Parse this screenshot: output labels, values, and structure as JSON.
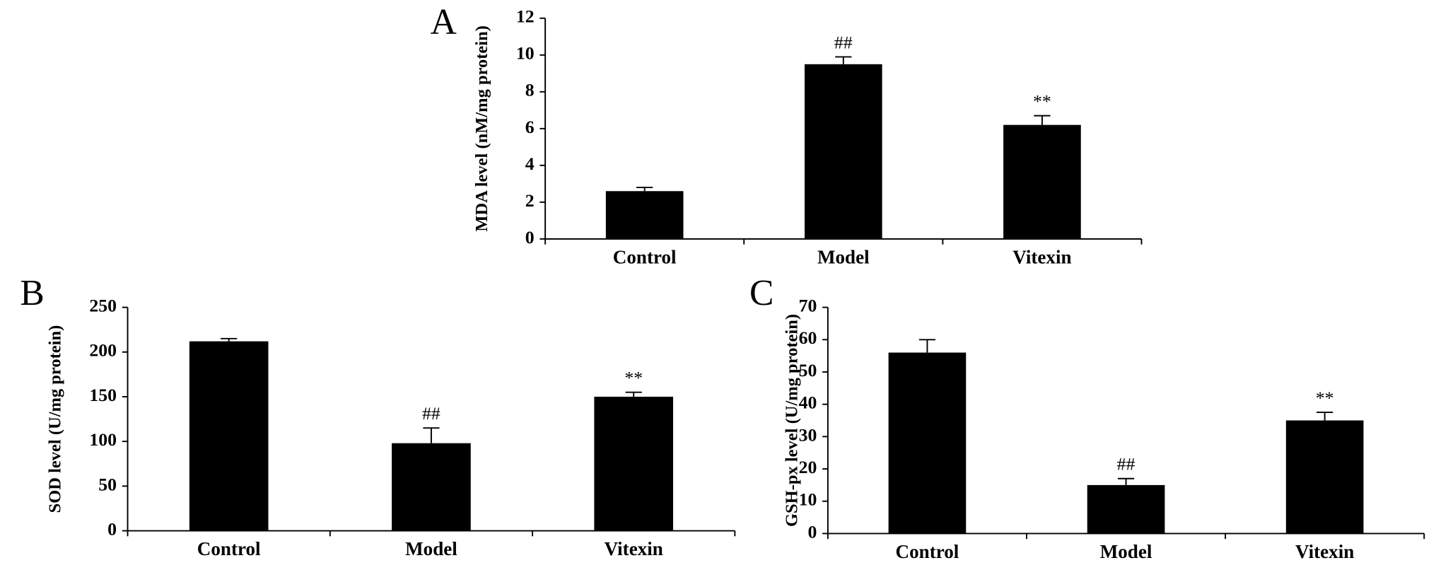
{
  "chart_data": [
    {
      "type": "bar",
      "panel_label": "A",
      "y_label": "MDA level (nM/mg protein)",
      "categories": [
        "Control",
        "Model",
        "Vitexin"
      ],
      "values": [
        2.6,
        9.5,
        6.2
      ],
      "errors": [
        0.2,
        0.4,
        0.5
      ],
      "annotations": [
        null,
        "##",
        "**"
      ],
      "color": "#000000",
      "ylim": [
        0,
        12
      ],
      "yticks": [
        0,
        2,
        4,
        6,
        8,
        10,
        12
      ]
    },
    {
      "type": "bar",
      "panel_label": "B",
      "y_label": "SOD level (U/mg protein)",
      "categories": [
        "Control",
        "Model",
        "Vitexin"
      ],
      "values": [
        212,
        98,
        150
      ],
      "errors": [
        3,
        17,
        5
      ],
      "annotations": [
        null,
        "##",
        "**"
      ],
      "color": "#000000",
      "ylim": [
        0,
        250
      ],
      "yticks": [
        0,
        50,
        100,
        150,
        200,
        250
      ]
    },
    {
      "type": "bar",
      "panel_label": "C",
      "y_label": "GSH-px level (U/mg protein)",
      "categories": [
        "Control",
        "Model",
        "Vitexin"
      ],
      "values": [
        56,
        15,
        35
      ],
      "errors": [
        4,
        2,
        2.5
      ],
      "annotations": [
        null,
        "##",
        "**"
      ],
      "color": "#000000",
      "ylim": [
        0,
        70
      ],
      "yticks": [
        0,
        10,
        20,
        30,
        40,
        50,
        60,
        70
      ]
    }
  ]
}
